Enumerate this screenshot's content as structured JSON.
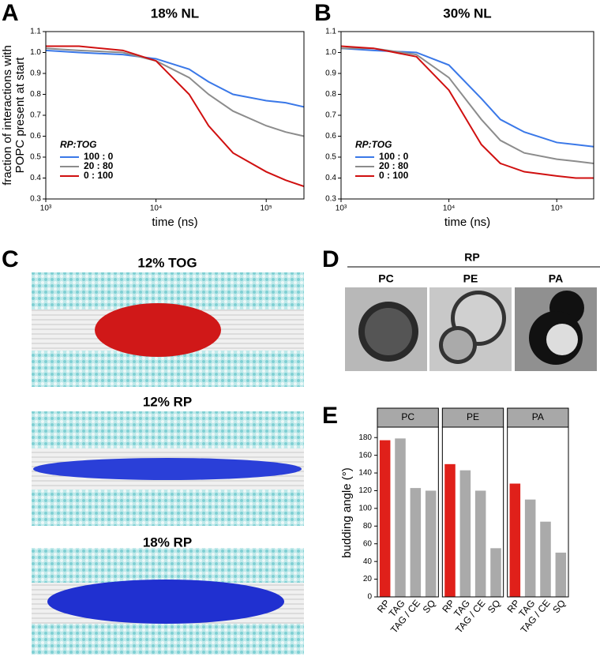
{
  "panel_labels": [
    "A",
    "B",
    "C",
    "D",
    "E"
  ],
  "md_panel": {
    "titles": [
      "12% TOG",
      "12% RP",
      "18% RP"
    ]
  },
  "microscopy_panel": {
    "group": "RP",
    "labels": [
      "PC",
      "PE",
      "PA"
    ]
  },
  "chart_data": [
    {
      "type": "line",
      "title": "18% NL",
      "xlabel": "time (ns)",
      "ylabel": [
        "fraction of interactions with",
        "POPC present at start"
      ],
      "log_x": true,
      "legend_title": "RP:TOG",
      "legend": "lower left",
      "x": [
        1000,
        2000,
        5000,
        10000,
        20000,
        30000,
        50000,
        100000,
        150000,
        220000
      ],
      "series": [
        {
          "name": "100 : 0",
          "color": "#3a78e8",
          "values": [
            1.01,
            1.0,
            0.99,
            0.97,
            0.92,
            0.86,
            0.8,
            0.77,
            0.76,
            0.74
          ]
        },
        {
          "name": "20 : 80",
          "color": "#8c8c8c",
          "values": [
            1.02,
            1.01,
            1.0,
            0.96,
            0.88,
            0.8,
            0.72,
            0.65,
            0.62,
            0.6
          ]
        },
        {
          "name": "0 : 100",
          "color": "#d01010",
          "values": [
            1.03,
            1.03,
            1.01,
            0.96,
            0.8,
            0.65,
            0.52,
            0.43,
            0.39,
            0.36
          ]
        }
      ],
      "xlim": [
        1000,
        220000
      ],
      "xticks": [
        {
          "value": 1000,
          "label": "10³"
        },
        {
          "value": 10000,
          "label": "10⁴"
        },
        {
          "value": 100000,
          "label": "10⁵"
        }
      ],
      "ylim": [
        0.3,
        1.1
      ],
      "yticks": [
        0.3,
        0.4,
        0.5,
        0.6,
        0.7,
        0.8,
        0.9,
        {
          "value": 1,
          "label": "1.0"
        },
        1.1
      ]
    },
    {
      "type": "line",
      "title": "30% NL",
      "xlabel": "time (ns)",
      "log_x": true,
      "legend_title": "RP:TOG",
      "legend": "lower left",
      "x": [
        1000,
        2000,
        5000,
        10000,
        20000,
        30000,
        50000,
        100000,
        150000,
        220000
      ],
      "series": [
        {
          "name": "100 : 0",
          "color": "#3a78e8",
          "values": [
            1.02,
            1.01,
            1.0,
            0.94,
            0.78,
            0.68,
            0.62,
            0.57,
            0.56,
            0.55
          ]
        },
        {
          "name": "20 : 80",
          "color": "#8c8c8c",
          "values": [
            1.02,
            1.02,
            0.99,
            0.88,
            0.68,
            0.58,
            0.52,
            0.49,
            0.48,
            0.47
          ]
        },
        {
          "name": "0 : 100",
          "color": "#d01010",
          "values": [
            1.03,
            1.02,
            0.98,
            0.82,
            0.56,
            0.47,
            0.43,
            0.41,
            0.4,
            0.4
          ]
        }
      ],
      "xlim": [
        1000,
        220000
      ],
      "xticks": [
        {
          "value": 1000,
          "label": "10³"
        },
        {
          "value": 10000,
          "label": "10⁴"
        },
        {
          "value": 100000,
          "label": "10⁵"
        }
      ],
      "ylim": [
        0.3,
        1.1
      ],
      "yticks": [
        0.3,
        0.4,
        0.5,
        0.6,
        0.7,
        0.8,
        0.9,
        {
          "value": 1,
          "label": "1.0"
        },
        1.1
      ]
    },
    {
      "type": "faceted_bar",
      "ylabel": "budding angle (°)",
      "categories": [
        "RP",
        "TAG",
        "TAG / CE",
        "SQ"
      ],
      "colors": [
        "#e0201a",
        "#aaaaaa",
        "#aaaaaa",
        "#aaaaaa"
      ],
      "facets": [
        {
          "name": "PC",
          "values": [
            177,
            179,
            123,
            120
          ]
        },
        {
          "name": "PE",
          "values": [
            150,
            143,
            120,
            55
          ]
        },
        {
          "name": "PA",
          "values": [
            128,
            110,
            85,
            50
          ]
        }
      ],
      "ylim": [
        0,
        190
      ],
      "yticks": [
        0,
        20,
        40,
        60,
        80,
        100,
        120,
        140,
        160,
        180
      ]
    }
  ]
}
